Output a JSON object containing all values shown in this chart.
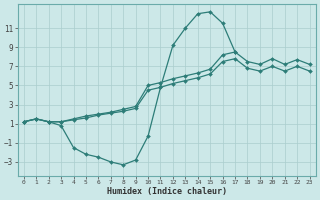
{
  "xlabel": "Humidex (Indice chaleur)",
  "bg_color": "#cce8e8",
  "line_color": "#2d7d78",
  "grid_color": "#aacece",
  "xlim": [
    -0.5,
    23.5
  ],
  "ylim": [
    -4.5,
    13.5
  ],
  "yticks": [
    -3,
    -1,
    1,
    3,
    5,
    7,
    9,
    11
  ],
  "xticks": [
    0,
    1,
    2,
    3,
    4,
    5,
    6,
    7,
    8,
    9,
    10,
    11,
    12,
    13,
    14,
    15,
    16,
    17,
    18,
    19,
    20,
    21,
    22,
    23
  ],
  "line1_x": [
    0,
    1,
    2,
    3,
    4,
    5,
    6,
    7,
    8,
    9,
    10,
    11,
    12,
    13,
    14,
    15,
    16,
    17
  ],
  "line1_y": [
    1.2,
    1.5,
    1.2,
    0.8,
    -1.5,
    -2.2,
    -2.5,
    -3.0,
    -3.3,
    -2.8,
    -0.3,
    4.8,
    9.2,
    11.0,
    12.5,
    12.7,
    11.5,
    8.5
  ],
  "line2_x": [
    0,
    1,
    2,
    3,
    4,
    5,
    6,
    7,
    8,
    9,
    10,
    11,
    12,
    13,
    14,
    15,
    16,
    17,
    18,
    19,
    20,
    21,
    22,
    23
  ],
  "line2_y": [
    1.2,
    1.5,
    1.2,
    1.2,
    1.5,
    1.8,
    2.0,
    2.2,
    2.5,
    2.8,
    5.0,
    5.3,
    5.7,
    6.0,
    6.3,
    6.7,
    8.2,
    8.5,
    7.5,
    7.2,
    7.8,
    7.2,
    7.7,
    7.2
  ],
  "line3_x": [
    0,
    1,
    2,
    3,
    4,
    5,
    6,
    7,
    8,
    9,
    10,
    11,
    12,
    13,
    14,
    15,
    16,
    17,
    18,
    19,
    20,
    21,
    22,
    23
  ],
  "line3_y": [
    1.2,
    1.5,
    1.2,
    1.2,
    1.4,
    1.6,
    1.9,
    2.1,
    2.3,
    2.6,
    4.5,
    4.8,
    5.2,
    5.5,
    5.8,
    6.2,
    7.5,
    7.8,
    6.8,
    6.5,
    7.0,
    6.5,
    7.0,
    6.5
  ]
}
